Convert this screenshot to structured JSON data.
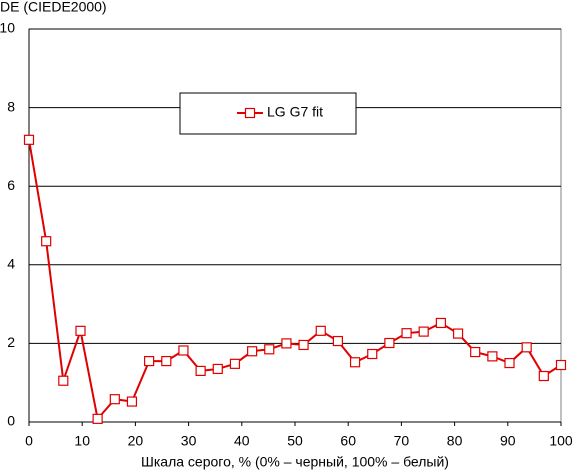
{
  "chart_data": {
    "type": "line",
    "y_label": "DE (CIEDE2000)",
    "x_label": "Шкала серого, % (0% – черный, 100% – белый)",
    "x": [
      0,
      3.23,
      6.45,
      9.68,
      12.9,
      16.13,
      19.35,
      22.58,
      25.81,
      29.03,
      32.26,
      35.48,
      38.71,
      41.94,
      45.16,
      48.39,
      51.61,
      54.84,
      58.06,
      61.29,
      64.52,
      67.74,
      70.97,
      74.19,
      77.42,
      80.65,
      83.87,
      87.1,
      90.32,
      93.55,
      96.77,
      100
    ],
    "series": [
      {
        "name": "LG G7 fit",
        "color": "#e00000",
        "values": [
          7.18,
          4.6,
          1.05,
          2.32,
          0.08,
          0.58,
          0.52,
          1.55,
          1.55,
          1.82,
          1.3,
          1.35,
          1.48,
          1.8,
          1.85,
          2.0,
          1.96,
          2.32,
          2.06,
          1.52,
          1.73,
          2.01,
          2.26,
          2.3,
          2.52,
          2.25,
          1.78,
          1.67,
          1.5,
          1.9,
          1.17,
          1.45
        ]
      }
    ],
    "xlim": [
      0,
      100
    ],
    "xticks": [
      0,
      10,
      20,
      30,
      40,
      50,
      60,
      70,
      80,
      90,
      100
    ],
    "ylim": [
      0,
      10
    ],
    "yticks": [
      0,
      2,
      4,
      6,
      8,
      10
    ],
    "grid": true,
    "legend": "top-center"
  }
}
